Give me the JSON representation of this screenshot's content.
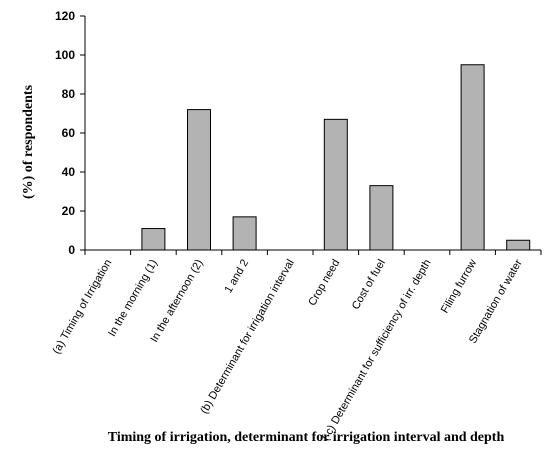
{
  "chart_data": {
    "type": "bar",
    "title": "",
    "xlabel": "Timing of irrigation, determinant for irrigation interval and depth",
    "ylabel": "(%) of respondents",
    "ylim": [
      0,
      120
    ],
    "yticks": [
      0,
      20,
      40,
      60,
      80,
      100,
      120
    ],
    "grid": false,
    "bar_color": "#b3b3b3",
    "bar_edge_color": "#000000",
    "categories": [
      "(a) Timing of Irrigation",
      "In the morning (1)",
      "In the afternoon (2)",
      "1 and 2",
      "(b) Determinant for irrigation interval",
      "Crop need",
      "Cost of fuel",
      "( c) Determinant for sufficiency of irr. depth",
      "Filing furrow",
      "Stagnation of water"
    ],
    "values": [
      0,
      11,
      72,
      17,
      0,
      67,
      33,
      0,
      95,
      5
    ]
  }
}
